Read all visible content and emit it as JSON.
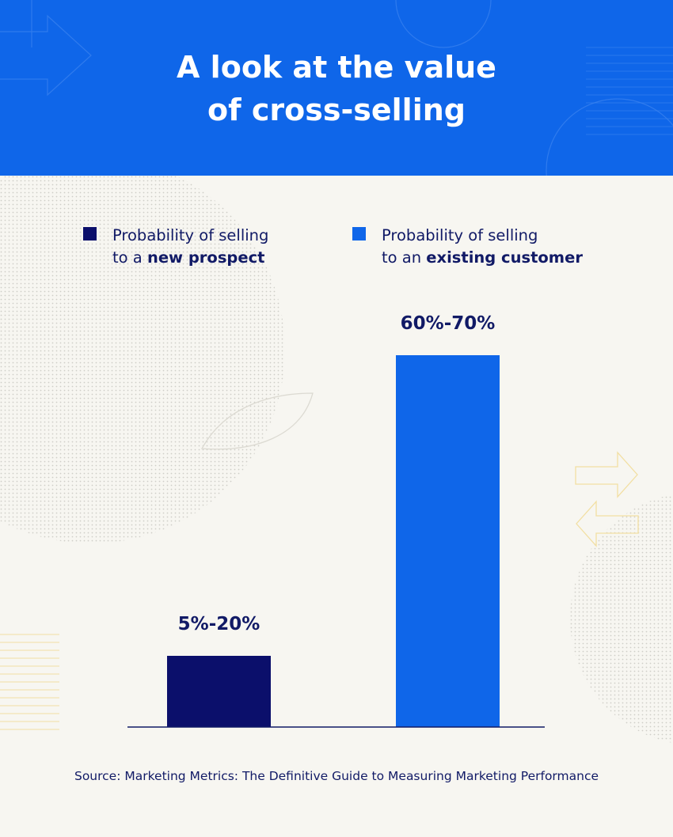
{
  "header": {
    "title_line1": "A look at the value",
    "title_line2": "of cross-selling"
  },
  "legend": {
    "new_prospect": {
      "line1": "Probability of selling",
      "line2_prefix": "to a ",
      "line2_bold": "new prospect"
    },
    "existing_customer": {
      "line1": "Probability of selling",
      "line2_prefix": "to an ",
      "line2_bold": "existing customer"
    }
  },
  "colors": {
    "header_bg": "#0f66e9",
    "page_bg": "#f7f6f1",
    "new_prospect": "#0b0f6b",
    "existing_customer": "#0f66e9",
    "text": "#111a66"
  },
  "chart_data": {
    "type": "bar",
    "title": "A look at the value of cross-selling",
    "categories": [
      "new prospect",
      "existing customer"
    ],
    "series": [
      {
        "name": "Probability of selling to a new prospect",
        "value_range": [
          5,
          20
        ],
        "label": "5%-20%"
      },
      {
        "name": "Probability of selling to an existing customer",
        "value_range": [
          60,
          70
        ],
        "label": "60%-70%"
      }
    ],
    "ylim": [
      0,
      100
    ],
    "grid": false,
    "legend_position": "top"
  },
  "source": "Source: Marketing Metrics: The Definitive Guide to Measuring Marketing Performance"
}
